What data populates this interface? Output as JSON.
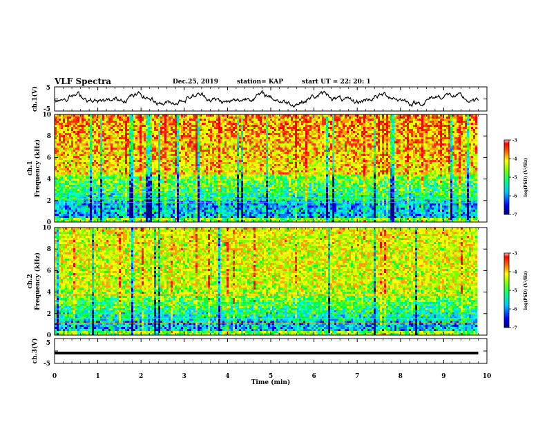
{
  "header": {
    "title": "VLF Spectra",
    "date": "Dec.25, 2019",
    "station": "station= KAP",
    "start": "start  UT =   22: 20: 1"
  },
  "chart_data": {
    "type": "heatmap",
    "x": {
      "label": "Time  (min)",
      "range": [
        0,
        10
      ],
      "ticks": [
        "0",
        "1",
        "2",
        "3",
        "4",
        "5",
        "6",
        "7",
        "8",
        "9",
        "10"
      ]
    },
    "panels": [
      {
        "name": "ch.1(V)",
        "type": "line",
        "ylim": [
          -5,
          5
        ],
        "yticks": [
          "5",
          "-5"
        ],
        "x_extent": [
          0,
          9.8
        ],
        "description_level": 0
      },
      {
        "name": "ch.1",
        "type": "heatmap",
        "ylabel": "Frequency  (kHz)",
        "ylim": [
          0,
          10
        ],
        "yticks": [
          "0",
          "2",
          "4",
          "6",
          "8",
          "10"
        ],
        "x_extent": [
          0,
          9.8
        ],
        "colorbar": {
          "label": "log(PSD) (V²/Hz)",
          "range": [
            -7,
            -3
          ],
          "ticks": [
            "-3",
            "-4",
            "-5",
            "-6",
            "-7"
          ]
        }
      },
      {
        "name": "ch.2",
        "type": "heatmap",
        "ylabel": "Frequency  (kHz)",
        "ylim": [
          0,
          10
        ],
        "yticks": [
          "0",
          "2",
          "4",
          "6",
          "8",
          "10"
        ],
        "x_extent": [
          0,
          9.8
        ],
        "colorbar": {
          "label": "log(PSD) (V²/Hz)",
          "range": [
            -7,
            -3
          ],
          "ticks": [
            "-3",
            "-4",
            "-5",
            "-6",
            "-7"
          ]
        }
      },
      {
        "name": "ch.3(V)",
        "type": "line",
        "ylim": [
          -5,
          5
        ],
        "yticks": [
          "5",
          "-5"
        ],
        "x_extent": [
          0,
          9.8
        ],
        "values": [
          [
            0,
            0
          ],
          [
            9.8,
            0
          ]
        ]
      }
    ],
    "colormap": [
      "#000080",
      "#0000ff",
      "#00a0ff",
      "#00ffff",
      "#00ff80",
      "#80ff00",
      "#ffff00",
      "#ffa000",
      "#ff0000",
      "#ffffff"
    ]
  }
}
